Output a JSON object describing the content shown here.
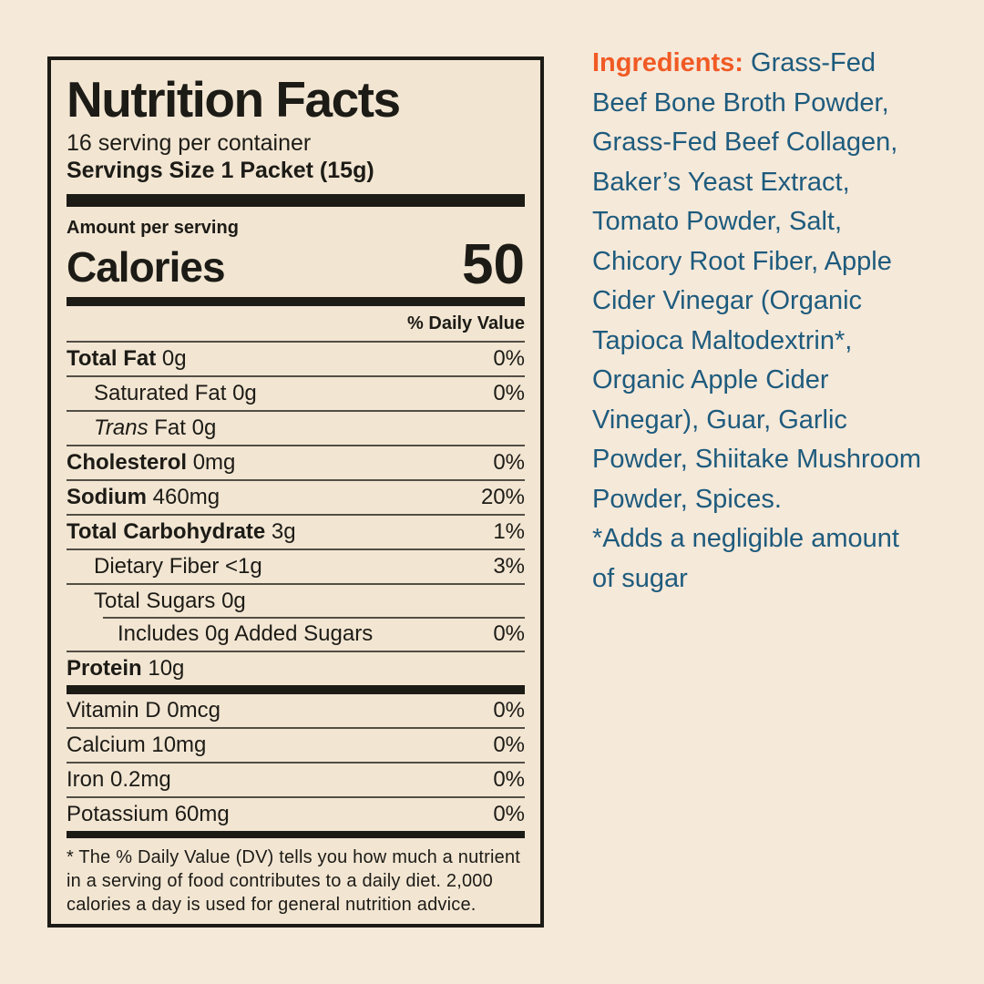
{
  "page": {
    "background_color": "#f5e9da",
    "label_background_color": "#f2e6d3",
    "text_color": "#1d1b16"
  },
  "label": {
    "title": "Nutrition Facts",
    "servings_per_container": "16 serving per container",
    "serving_size": "Servings Size 1 Packet (15g)",
    "amount_per_serving": "Amount per serving",
    "calories_label": "Calories",
    "calories_value": "50",
    "daily_value_header": "% Daily Value",
    "rows": [
      {
        "bold": "Total Fat",
        "text": "0g",
        "dv": "0%",
        "indent": 0
      },
      {
        "text": "Saturated Fat 0g",
        "dv": "0%",
        "indent": 1
      },
      {
        "italic": "Trans",
        "text": "Fat 0g",
        "dv": "",
        "indent": 1
      },
      {
        "bold": "Cholesterol",
        "text": "0mg",
        "dv": "0%",
        "indent": 0
      },
      {
        "bold": "Sodium",
        "text": "460mg",
        "dv": "20%",
        "indent": 0
      },
      {
        "bold": "Total Carbohydrate",
        "text": "3g",
        "dv": "1%",
        "indent": 0
      },
      {
        "text": "Dietary Fiber <1g",
        "dv": "3%",
        "indent": 1
      },
      {
        "text": "Total Sugars 0g",
        "dv": "",
        "indent": 1
      },
      {
        "text": "Includes 0g Added Sugars",
        "dv": "0%",
        "indent": 2,
        "sep_indent": true
      },
      {
        "bold": "Protein",
        "text": "10g",
        "dv": "",
        "indent": 0
      }
    ],
    "micronutrient_rows": [
      {
        "text": "Vitamin D 0mcg",
        "dv": "0%",
        "indent": 0
      },
      {
        "text": "Calcium 10mg",
        "dv": "0%",
        "indent": 0
      },
      {
        "text": "Iron 0.2mg",
        "dv": "0%",
        "indent": 0
      },
      {
        "text": "Potassium 60mg",
        "dv": "0%",
        "indent": 0
      }
    ],
    "footnote": "* The % Daily Value (DV) tells you how much a nutrient in a serving of food contributes to a daily diet. 2,000 calories a day is used for general nutrition advice."
  },
  "ingredients": {
    "label": "Ingredients:",
    "first_line_rest": "Grass-Fed",
    "lines": [
      "Beef Bone Broth Powder,",
      "Grass-Fed Beef Collagen,",
      "Baker’s Yeast Extract,",
      "Tomato Powder, Salt,",
      "Chicory Root Fiber, Apple",
      "Cider Vinegar (Organic",
      "Tapioca Maltodextrin*,",
      "Organic Apple Cider",
      "Vinegar), Guar, Garlic",
      "Powder, Shiitake Mushroom",
      "Powder, Spices.",
      "*Adds a negligible amount",
      "of sugar"
    ],
    "colors": {
      "label": "#f15a24",
      "text": "#1e5b7d"
    }
  }
}
